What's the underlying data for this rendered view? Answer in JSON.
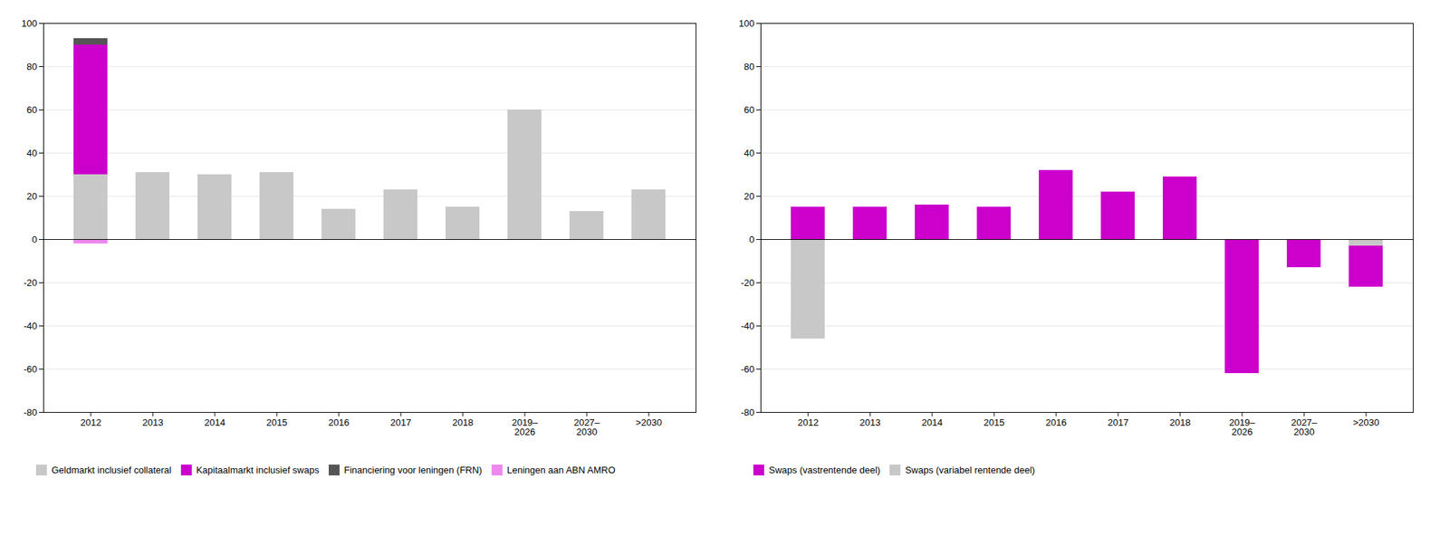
{
  "chart_data": [
    {
      "type": "bar",
      "stacked": true,
      "grid": true,
      "legend": "bottom",
      "categories": [
        "2012",
        "2013",
        "2014",
        "2015",
        "2016",
        "2017",
        "2018",
        "2019–\n2026",
        "2027–\n2030",
        ">2030"
      ],
      "series": [
        {
          "name": "Geldmarkt inclusief collateral",
          "color": "#c8c8c8",
          "values": [
            30,
            31,
            30,
            31,
            14,
            23,
            15,
            60,
            13,
            23
          ]
        },
        {
          "name": "Kapitaalmarkt inclusief swaps",
          "color": "#cc00cc",
          "values": [
            60,
            0,
            0,
            0,
            0,
            0,
            0,
            0,
            0,
            0
          ]
        },
        {
          "name": "Financiering voor leningen (FRN)",
          "color": "#555555",
          "values": [
            3,
            0,
            0,
            0,
            0,
            0,
            0,
            0,
            0,
            0
          ]
        },
        {
          "name": "Leningen aan ABN AMRO",
          "color": "#ee88ee",
          "values": [
            -2,
            0,
            0,
            0,
            0,
            0,
            0,
            0,
            0,
            0
          ]
        }
      ],
      "ylim": [
        -80,
        100
      ],
      "yticks": [
        -80,
        -60,
        -40,
        -20,
        0,
        20,
        40,
        60,
        80,
        100
      ]
    },
    {
      "type": "bar",
      "stacked": false,
      "grid": true,
      "legend": "bottom",
      "categories": [
        "2012",
        "2013",
        "2014",
        "2015",
        "2016",
        "2017",
        "2018",
        "2019–\n2026",
        "2027–\n2030",
        ">2030"
      ],
      "series": [
        {
          "name": "Swaps (vastrentende deel)",
          "color": "#cc00cc",
          "values": [
            15,
            15,
            16,
            15,
            32,
            22,
            29,
            -62,
            -13,
            -22
          ]
        },
        {
          "name": "Swaps (variabel rentende deel)",
          "color": "#c8c8c8",
          "values": [
            -46,
            0,
            0,
            0,
            0,
            0,
            0,
            0,
            0,
            -3
          ]
        }
      ],
      "ylim": [
        -80,
        100
      ],
      "yticks": [
        -80,
        -60,
        -40,
        -20,
        0,
        20,
        40,
        60,
        80,
        100
      ]
    }
  ]
}
